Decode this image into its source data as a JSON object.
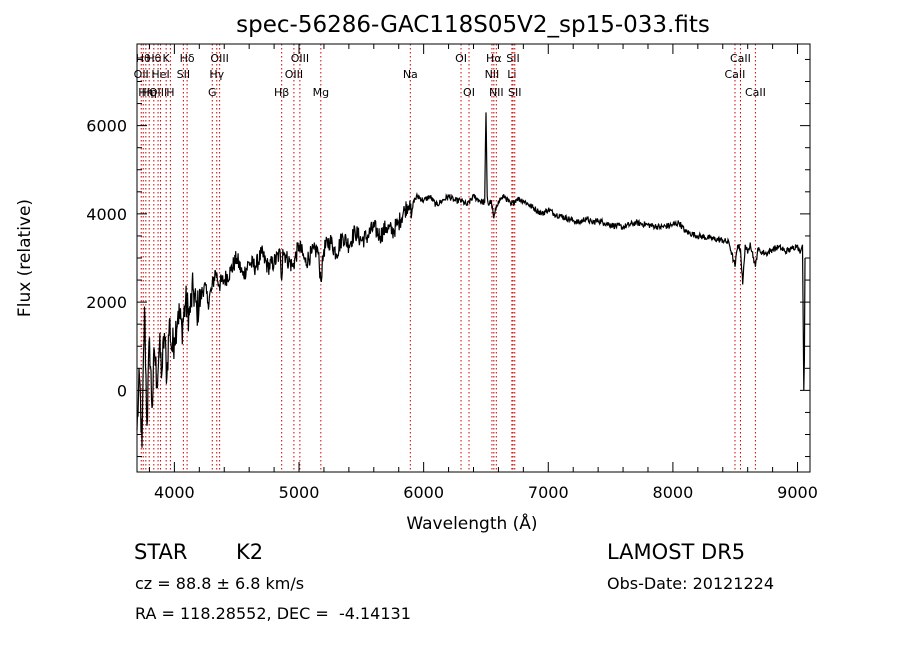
{
  "chart_data": {
    "type": "line",
    "title": "spec-56286-GAC118S05V2_sp15-033.fits",
    "xlabel": "Wavelength (Å)",
    "ylabel": "Flux (relative)",
    "xlim": [
      3700,
      9100
    ],
    "ylim": [
      -1850,
      7850
    ],
    "xticks": [
      4000,
      5000,
      6000,
      7000,
      8000,
      9000
    ],
    "yticks": [
      0,
      2000,
      4000,
      6000
    ],
    "grid": false,
    "line_color": "#000000",
    "marker_color": "#cc0000",
    "series": [
      {
        "x": [
          3700,
          3720,
          3740,
          3760,
          3780,
          3800,
          3820,
          3840,
          3860,
          3880,
          3900,
          3920,
          3940,
          3960,
          3980,
          4000,
          4030,
          4060,
          4090,
          4120,
          4150,
          4180,
          4210,
          4240,
          4270,
          4300,
          4330,
          4360,
          4400,
          4450,
          4500,
          4550,
          4600,
          4650,
          4700,
          4750,
          4800,
          4850,
          4861,
          4870,
          4900,
          4950,
          5000,
          5050,
          5100,
          5150,
          5175,
          5200,
          5250,
          5300,
          5350,
          5400,
          5450,
          5500,
          5550,
          5600,
          5650,
          5700,
          5750,
          5800,
          5850,
          5890,
          5900,
          5920,
          5950,
          6000,
          6050,
          6100,
          6150,
          6200,
          6250,
          6300,
          6350,
          6400,
          6450,
          6490,
          6500,
          6510,
          6520,
          6540,
          6563,
          6580,
          6600,
          6650,
          6700,
          6750,
          6800,
          6850,
          6900,
          6950,
          7000,
          7050,
          7100,
          7150,
          7200,
          7250,
          7300,
          7350,
          7400,
          7450,
          7500,
          7600,
          7700,
          7800,
          7900,
          8000,
          8050,
          8100,
          8200,
          8300,
          8400,
          8450,
          8498,
          8520,
          8542,
          8560,
          8580,
          8600,
          8620,
          8662,
          8680,
          8700,
          8750,
          8800,
          8850,
          8900,
          8950,
          9000,
          9020,
          9040,
          9050,
          9055,
          9060
        ],
        "y": [
          -900,
          300,
          -1300,
          1900,
          -800,
          1200,
          -400,
          900,
          200,
          1000,
          400,
          1300,
          300,
          1600,
          900,
          1200,
          1800,
          1400,
          2000,
          1700,
          2300,
          1800,
          2100,
          2400,
          2000,
          2300,
          2700,
          2400,
          2500,
          2700,
          3000,
          2600,
          2900,
          2800,
          3100,
          2800,
          2900,
          3100,
          2500,
          3200,
          3000,
          2800,
          3300,
          2900,
          3100,
          3200,
          2500,
          3200,
          3400,
          3100,
          3500,
          3300,
          3600,
          3400,
          3500,
          3700,
          3500,
          3700,
          3600,
          3800,
          4100,
          4300,
          3900,
          4300,
          4400,
          4300,
          4400,
          4200,
          4300,
          4400,
          4300,
          4300,
          4200,
          4400,
          4300,
          4250,
          6300,
          4400,
          4200,
          4300,
          3900,
          4100,
          4300,
          4400,
          4200,
          4350,
          4300,
          4200,
          4100,
          4000,
          4100,
          4000,
          3950,
          3900,
          3850,
          3800,
          3900,
          3800,
          3850,
          3800,
          3750,
          3700,
          3800,
          3750,
          3700,
          3750,
          3800,
          3600,
          3500,
          3450,
          3400,
          3350,
          2800,
          3300,
          3200,
          2400,
          3300,
          3100,
          3350,
          2800,
          3200,
          3150,
          3100,
          3200,
          3250,
          3150,
          3200,
          3300,
          3100,
          3300,
          0,
          700,
          3000
        ]
      }
    ],
    "line_markers": [
      {
        "x": 3734,
        "label": "OII",
        "row": 2
      },
      {
        "x": 3750,
        "label": "Hθ",
        "row": 1
      },
      {
        "x": 3771,
        "label": "Hη",
        "row": 3
      },
      {
        "x": 3798,
        "label": "Hη",
        "row": 3
      },
      {
        "x": 3835,
        "label": "Hθ",
        "row": 1
      },
      {
        "x": 3869,
        "label": "OIII",
        "row": 3
      },
      {
        "x": 3889,
        "label": "HeI",
        "row": 2
      },
      {
        "x": 3934,
        "label": "K",
        "row": 1
      },
      {
        "x": 3968,
        "label": "H",
        "row": 3
      },
      {
        "x": 4072,
        "label": "SII",
        "row": 2
      },
      {
        "x": 4102,
        "label": "Hδ",
        "row": 1
      },
      {
        "x": 4304,
        "label": "G",
        "row": 3
      },
      {
        "x": 4340,
        "label": "Hγ",
        "row": 2
      },
      {
        "x": 4363,
        "label": "OIII",
        "row": 1
      },
      {
        "x": 4861,
        "label": "Hβ",
        "row": 3
      },
      {
        "x": 4959,
        "label": "OIII",
        "row": 2
      },
      {
        "x": 5007,
        "label": "OIII",
        "row": 1
      },
      {
        "x": 5175,
        "label": "Mg",
        "row": 3
      },
      {
        "x": 5893,
        "label": "Na",
        "row": 2
      },
      {
        "x": 6300,
        "label": "OI",
        "row": 1
      },
      {
        "x": 6364,
        "label": "OI",
        "row": 3
      },
      {
        "x": 6548,
        "label": "NII",
        "row": 2
      },
      {
        "x": 6563,
        "label": "Hα",
        "row": 1
      },
      {
        "x": 6583,
        "label": "NII",
        "row": 3
      },
      {
        "x": 6708,
        "label": "Li",
        "row": 2
      },
      {
        "x": 6717,
        "label": "SII",
        "row": 1
      },
      {
        "x": 6731,
        "label": "SII",
        "row": 3
      },
      {
        "x": 8498,
        "label": "CaII",
        "row": 2
      },
      {
        "x": 8542,
        "label": "CaII",
        "row": 1
      },
      {
        "x": 8662,
        "label": "CaII",
        "row": 3
      }
    ]
  },
  "info": {
    "object_class": "STAR",
    "subclass": "K2",
    "survey": "LAMOST DR5",
    "redshift_line": "cz = 88.8 ± 6.8 km/s",
    "obs_date": "Obs-Date: 20121224",
    "coords": "RA = 118.28552, DEC =  -4.14131"
  }
}
